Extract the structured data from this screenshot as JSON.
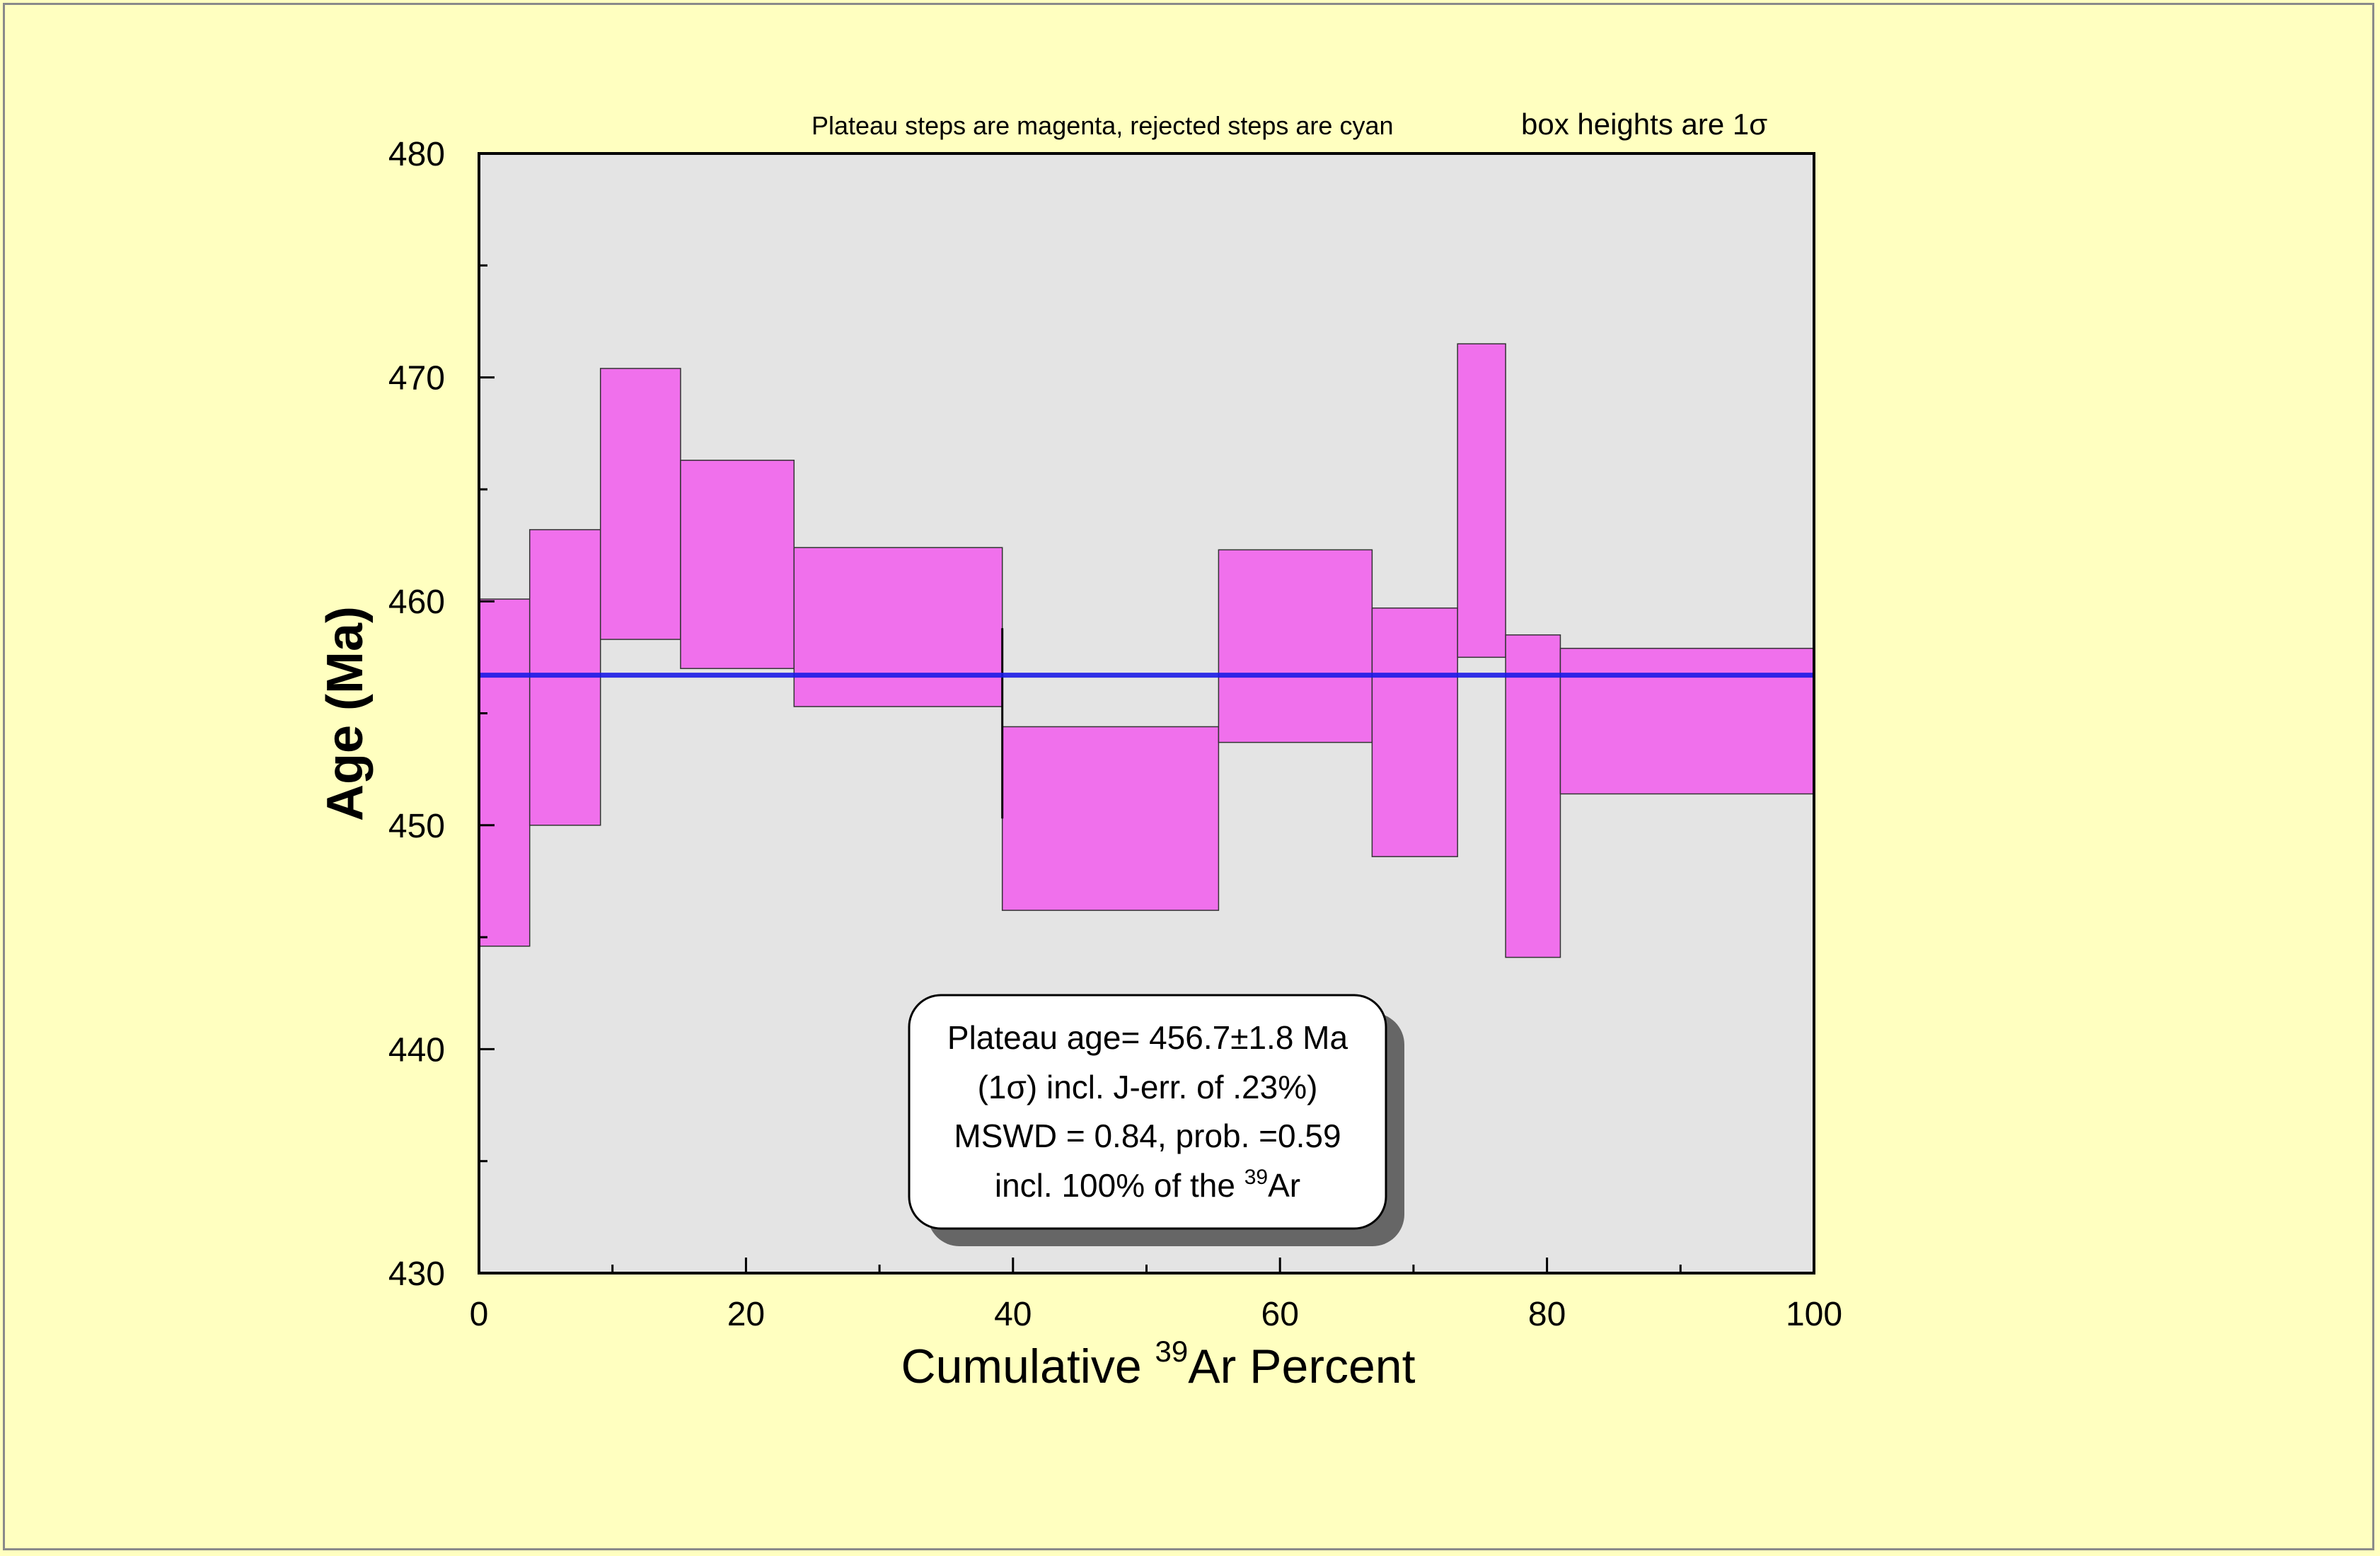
{
  "chart_data": {
    "type": "bar",
    "subtype": "argon step-heating age spectrum",
    "note_left": "Plateau steps are magenta, rejected steps are cyan",
    "note_right": "box heights are 1σ",
    "xlabel_prefix": "Cumulative ",
    "xlabel_sup": "39",
    "xlabel_suffix": "Ar Percent",
    "ylabel": "Age (Ma)",
    "xlim": [
      0,
      100
    ],
    "ylim": [
      430,
      480
    ],
    "x_ticks": [
      0,
      20,
      40,
      60,
      80,
      100
    ],
    "x_minor_ticks": [
      10,
      30,
      50,
      70,
      90
    ],
    "y_ticks": [
      430,
      440,
      450,
      460,
      470,
      480
    ],
    "y_minor_ticks": [
      435,
      445,
      455,
      465,
      475
    ],
    "grid": false,
    "colors": {
      "plateau_step": "#f070ec",
      "rejected_step": "#00ffff",
      "plateau_line": "#1a1ae6",
      "plot_background": "#e4e4e4",
      "page_background": "#ffffc0"
    },
    "plateau_age": 456.7,
    "steps": [
      {
        "x0": 0.0,
        "x1": 3.8,
        "low": 444.6,
        "high": 460.1,
        "status": "plateau"
      },
      {
        "x0": 3.8,
        "x1": 9.1,
        "low": 450.0,
        "high": 463.2,
        "status": "plateau"
      },
      {
        "x0": 9.1,
        "x1": 15.1,
        "low": 458.3,
        "high": 470.4,
        "status": "plateau"
      },
      {
        "x0": 15.1,
        "x1": 23.6,
        "low": 457.0,
        "high": 466.3,
        "status": "plateau"
      },
      {
        "x0": 23.6,
        "x1": 39.2,
        "low": 455.3,
        "high": 462.4,
        "status": "plateau"
      },
      {
        "x0": 39.2,
        "x1": 55.4,
        "low": 446.2,
        "high": 454.4,
        "status": "plateau"
      },
      {
        "x0": 55.4,
        "x1": 66.9,
        "low": 453.7,
        "high": 462.3,
        "status": "plateau"
      },
      {
        "x0": 66.9,
        "x1": 73.3,
        "low": 448.6,
        "high": 459.7,
        "status": "plateau"
      },
      {
        "x0": 73.3,
        "x1": 76.9,
        "low": 457.5,
        "high": 471.5,
        "status": "plateau"
      },
      {
        "x0": 76.9,
        "x1": 81.0,
        "low": 444.1,
        "high": 458.5,
        "status": "plateau"
      },
      {
        "x0": 81.0,
        "x1": 100.0,
        "low": 451.4,
        "high": 457.9,
        "status": "plateau"
      }
    ],
    "step_connector": {
      "x": 39.2,
      "low": 450.3,
      "high": 458.8
    },
    "annotation": {
      "line1": "Plateau age= 456.7±1.8 Ma",
      "line2": "(1σ) incl. J-err. of .23%)",
      "line3": "MSWD = 0.84, prob. =0.59",
      "line4_prefix": "incl. 100% of the ",
      "line4_sup": "39",
      "line4_suffix": "Ar"
    }
  }
}
